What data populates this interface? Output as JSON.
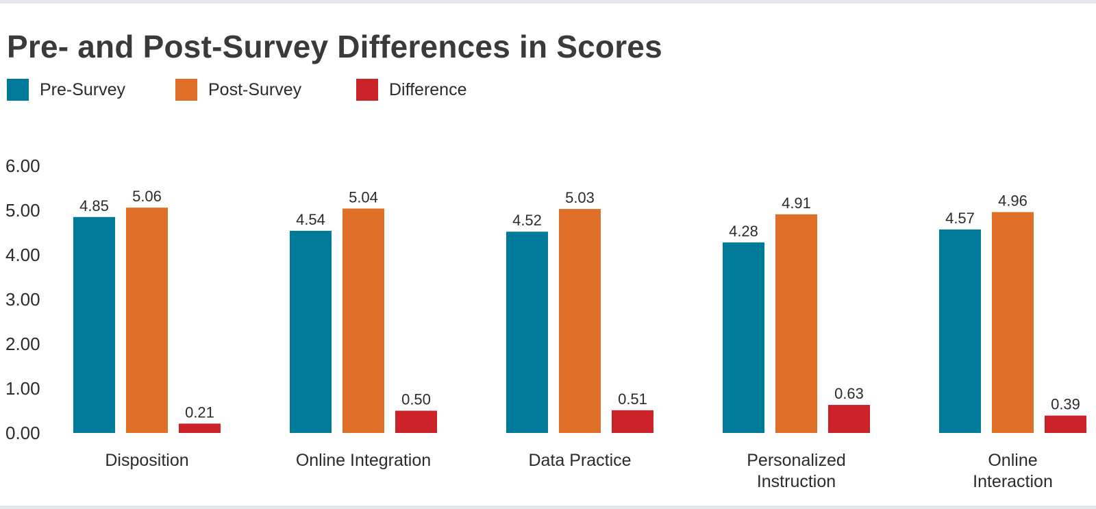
{
  "title": "Pre- and Post-Survey Differences in Scores",
  "colors": {
    "pre": "#007a99",
    "post": "#e07028",
    "diff": "#cc2229"
  },
  "legend": {
    "pre_label": "Pre-Survey",
    "post_label": "Post-Survey",
    "diff_label": "Difference"
  },
  "chart_data": {
    "type": "bar",
    "title": "Pre- and Post-Survey Differences in Scores",
    "xlabel": "",
    "ylabel": "",
    "ylim": [
      0,
      6
    ],
    "yticks": [
      "0.00",
      "1.00",
      "2.00",
      "3.00",
      "4.00",
      "5.00",
      "6.00"
    ],
    "grid": false,
    "legend_position": "top-left",
    "categories": [
      [
        "Disposition"
      ],
      [
        "Online Integration"
      ],
      [
        "Data Practice"
      ],
      [
        "Personalized",
        "Instruction"
      ],
      [
        "Online",
        "Interaction"
      ]
    ],
    "series": [
      {
        "name": "Pre-Survey",
        "color_key": "pre",
        "values": [
          4.85,
          4.54,
          4.52,
          4.28,
          4.57
        ],
        "labels": [
          "4.85",
          "4.54",
          "4.52",
          "4.28",
          "4.57"
        ]
      },
      {
        "name": "Post-Survey",
        "color_key": "post",
        "values": [
          5.06,
          5.04,
          5.03,
          4.91,
          4.96
        ],
        "labels": [
          "5.06",
          "5.04",
          "5.03",
          "4.91",
          "4.96"
        ]
      },
      {
        "name": "Difference",
        "color_key": "diff",
        "values": [
          0.21,
          0.5,
          0.51,
          0.63,
          0.39
        ],
        "labels": [
          "0.21",
          "0.50",
          "0.51",
          "0.63",
          "0.39"
        ]
      }
    ]
  }
}
